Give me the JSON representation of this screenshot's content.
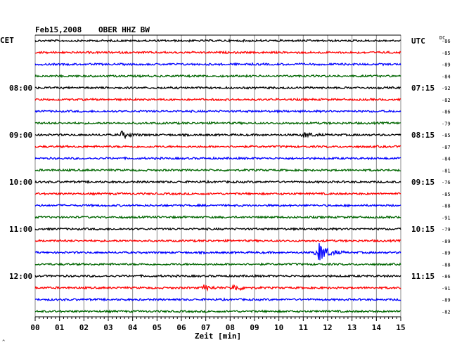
{
  "chart_data": {
    "type": "line",
    "header": {
      "date": "Feb15,2008",
      "station": "OBER HHZ BW"
    },
    "left_timezone": "CET",
    "right_timezone": "UTC",
    "dc_label": "DC",
    "xlabel": "Zeit [min]",
    "xlim": [
      0,
      15
    ],
    "x_ticks": [
      "00",
      "01",
      "02",
      "03",
      "04",
      "05",
      "06",
      "07",
      "08",
      "09",
      "10",
      "11",
      "12",
      "13",
      "14",
      "15"
    ],
    "trace_count": 24,
    "trace_colors": [
      "#000000",
      "#ff0000",
      "#0000ff",
      "#006600"
    ],
    "left_hour_labels": [
      {
        "trace": 4,
        "label": "08:00"
      },
      {
        "trace": 8,
        "label": "09:00"
      },
      {
        "trace": 12,
        "label": "10:00"
      },
      {
        "trace": 16,
        "label": "11:00"
      },
      {
        "trace": 20,
        "label": "12:00"
      }
    ],
    "right_time_labels": [
      {
        "trace": 0,
        "label": "UTC"
      },
      {
        "trace": 4,
        "label": "07:15"
      },
      {
        "trace": 8,
        "label": "08:15"
      },
      {
        "trace": 12,
        "label": "09:15"
      },
      {
        "trace": 16,
        "label": "10:15"
      },
      {
        "trace": 20,
        "label": "11:15"
      }
    ],
    "dc_offsets": [
      "-86",
      "-85",
      "-89",
      "-84",
      "-92",
      "-82",
      "-86",
      "-79",
      "-85",
      "-87",
      "-84",
      "-81",
      "-76",
      "-85",
      "-88",
      "-91",
      "-79",
      "-89",
      "-89",
      "-88",
      "-86",
      "-91",
      "-89",
      "-82"
    ],
    "events": [
      {
        "trace": 8,
        "minute": 3.5,
        "amplitude": 1.8
      },
      {
        "trace": 8,
        "minute": 11.0,
        "amplitude": 1.4
      },
      {
        "trace": 18,
        "minute": 11.6,
        "amplitude": 6.0
      },
      {
        "trace": 21,
        "minute": 8.1,
        "amplitude": 1.6
      },
      {
        "trace": 21,
        "minute": 6.9,
        "amplitude": 1.3
      }
    ],
    "corner_mark": "^"
  }
}
